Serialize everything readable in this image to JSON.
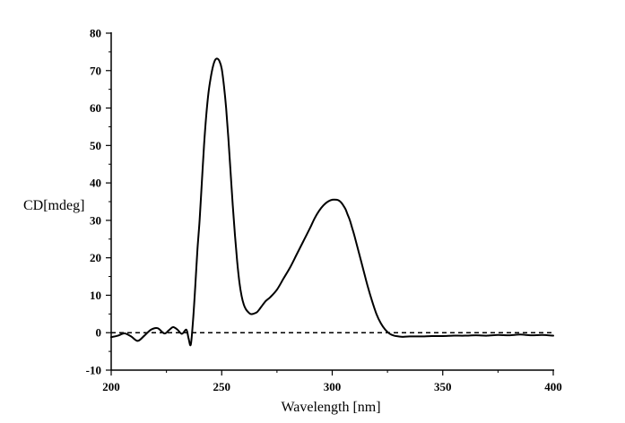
{
  "chart_data": {
    "type": "line",
    "title": "",
    "xlabel": "Wavelength [nm]",
    "ylabel": "CD[mdeg]",
    "xlim": [
      200,
      400
    ],
    "ylim": [
      -10,
      80
    ],
    "x_ticks": [
      200,
      250,
      300,
      350,
      400
    ],
    "y_ticks": [
      -10,
      0,
      10,
      20,
      30,
      40,
      50,
      60,
      70,
      80
    ],
    "x_tick_labels": [
      "200",
      "250",
      "300",
      "350",
      "400"
    ],
    "y_tick_labels": [
      "-10",
      "0",
      "10",
      "20",
      "30",
      "40",
      "50",
      "60",
      "70",
      "80"
    ],
    "grid": false,
    "legend": "none",
    "reference_line": {
      "y": 0,
      "style": "dashed",
      "x_range": [
        200,
        400
      ]
    },
    "series": [
      {
        "color": "#000000",
        "style": "solid",
        "x": [
          200,
          203,
          206,
          209,
          212,
          215,
          218,
          221,
          224,
          226,
          228,
          230,
          232,
          234,
          235,
          236,
          237,
          238,
          239,
          240,
          241,
          242,
          243,
          244,
          245,
          246,
          247,
          248,
          249,
          250,
          251,
          252,
          253,
          254,
          255,
          256,
          257,
          258,
          259,
          260,
          261,
          262,
          263,
          264,
          265,
          266,
          267,
          268,
          270,
          272,
          275,
          278,
          281,
          284,
          287,
          290,
          292,
          294,
          296,
          298,
          300,
          302,
          303,
          304,
          305,
          306,
          307,
          308,
          309,
          310,
          312,
          314,
          316,
          318,
          320,
          322,
          324,
          326,
          328,
          330,
          332,
          335,
          340,
          345,
          350,
          355,
          360,
          365,
          370,
          375,
          380,
          385,
          390,
          395,
          400
        ],
        "y": [
          -1.2,
          -0.8,
          -0.2,
          -1.0,
          -2.2,
          -0.8,
          0.8,
          1.2,
          -0.2,
          0.6,
          1.5,
          0.8,
          -0.3,
          0.8,
          -1.5,
          -3.2,
          3.0,
          12.0,
          22.0,
          30.0,
          40.0,
          50.0,
          58.0,
          64.0,
          68.0,
          71.0,
          72.8,
          73.2,
          72.5,
          70.5,
          66.0,
          60.0,
          52.0,
          43.0,
          34.0,
          26.0,
          19.0,
          13.5,
          9.8,
          7.5,
          6.2,
          5.5,
          5.0,
          5.0,
          5.2,
          5.5,
          6.2,
          7.0,
          8.5,
          9.5,
          11.5,
          14.5,
          17.5,
          21.0,
          24.5,
          28.0,
          30.5,
          32.5,
          34.0,
          35.0,
          35.5,
          35.5,
          35.3,
          34.8,
          34.0,
          33.0,
          31.5,
          30.0,
          28.0,
          26.0,
          21.5,
          17.0,
          12.5,
          8.5,
          5.0,
          2.5,
          0.8,
          -0.3,
          -0.8,
          -1.0,
          -1.1,
          -1.0,
          -1.0,
          -0.9,
          -0.9,
          -0.8,
          -0.8,
          -0.7,
          -0.8,
          -0.6,
          -0.7,
          -0.5,
          -0.7,
          -0.6,
          -0.8
        ]
      }
    ]
  }
}
